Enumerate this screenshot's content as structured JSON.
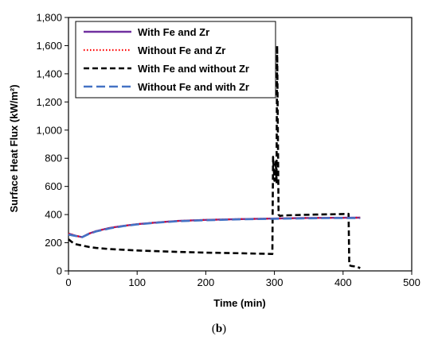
{
  "panel_label_open": "(",
  "panel_label_letter": "b",
  "panel_label_close": ")",
  "chart_data": {
    "type": "line",
    "xlabel": "Time (min)",
    "ylabel": "Surface Heat Flux (kW/m²)",
    "xlim": [
      0,
      500
    ],
    "ylim": [
      0,
      1800
    ],
    "xticks": [
      "0",
      "100",
      "200",
      "300",
      "400",
      "500"
    ],
    "yticks": [
      "0",
      "200",
      "400",
      "600",
      "800",
      "1,000",
      "1,200",
      "1,400",
      "1,600",
      "1,800"
    ],
    "grid": false,
    "legend_position": "top-left inside",
    "series": [
      {
        "name": "With Fe and Zr",
        "color": "#7030a0",
        "dash": "solid",
        "x": [
          0,
          10,
          20,
          30,
          40,
          60,
          80,
          100,
          130,
          160,
          200,
          250,
          300,
          340,
          380,
          425
        ],
        "y": [
          265,
          250,
          240,
          265,
          282,
          305,
          320,
          332,
          345,
          355,
          362,
          368,
          372,
          375,
          377,
          378
        ]
      },
      {
        "name": "Without Fe and Zr",
        "color": "#ff0000",
        "dash": "dotted",
        "x": [
          0,
          10,
          20,
          30,
          40,
          60,
          80,
          100,
          130,
          160,
          200,
          250,
          300,
          340,
          380,
          425
        ],
        "y": [
          265,
          250,
          240,
          265,
          282,
          305,
          320,
          332,
          345,
          355,
          362,
          368,
          372,
          375,
          377,
          378
        ]
      },
      {
        "name": "With Fe and without Zr",
        "color": "#000000",
        "dash": "dashed",
        "x": [
          0,
          5,
          10,
          20,
          30,
          40,
          60,
          80,
          100,
          130,
          160,
          200,
          250,
          297,
          298,
          300,
          302,
          303,
          304,
          306,
          308,
          310,
          320,
          340,
          360,
          380,
          400,
          408,
          409,
          412,
          420,
          425
        ],
        "y": [
          225,
          205,
          190,
          180,
          170,
          163,
          155,
          150,
          145,
          140,
          135,
          130,
          125,
          120,
          810,
          640,
          780,
          630,
          1600,
          400,
          390,
          392,
          395,
          398,
          400,
          402,
          404,
          405,
          40,
          35,
          30,
          20
        ]
      },
      {
        "name": "Without Fe and with Zr",
        "color": "#4472c4",
        "dash": "longdash",
        "x": [
          0,
          10,
          20,
          30,
          40,
          60,
          80,
          100,
          130,
          160,
          200,
          250,
          300,
          340,
          380,
          425
        ],
        "y": [
          258,
          248,
          240,
          263,
          280,
          302,
          318,
          330,
          343,
          353,
          360,
          366,
          370,
          373,
          375,
          376
        ]
      }
    ]
  }
}
